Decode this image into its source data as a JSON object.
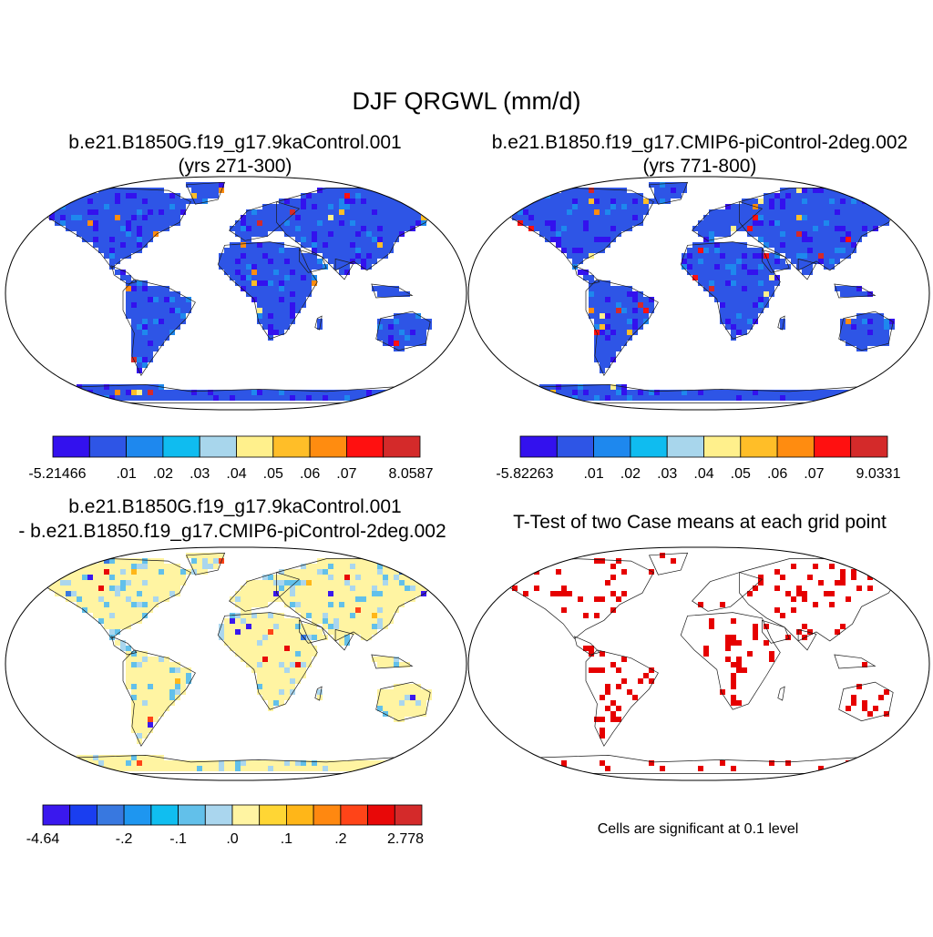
{
  "figure_title": "DJF QRGWL (mm/d)",
  "colors": {
    "ocean": "#ffffff",
    "outline": "#000000",
    "land_outline": "#1a1a1a",
    "signif": "#e60000"
  },
  "chart_data": [
    {
      "type": "heatmap",
      "panel": "case1",
      "title_lines": [
        "b.e21.B1850G.f19_g17.9kaControl.001",
        "(yrs 271-300)"
      ],
      "colorbar": {
        "colors": [
          "#3311ee",
          "#2e55e6",
          "#1e88ee",
          "#0fbcf0",
          "#a8d6ec",
          "#fff08c",
          "#ffbe28",
          "#ff8c10",
          "#ff1010",
          "#d42a2a"
        ],
        "tick_labels": [
          "-5.21466",
          ".01",
          ".02",
          ".03",
          ".04",
          ".05",
          ".06",
          ".07",
          "8.0587"
        ]
      },
      "background_class": 1,
      "texture_classes": [
        0,
        2
      ],
      "hotspot_classes": [
        5,
        6,
        7,
        8,
        9
      ]
    },
    {
      "type": "heatmap",
      "panel": "case2",
      "title_lines": [
        "b.e21.B1850.f19_g17.CMIP6-piControl-2deg.002",
        "(yrs 771-800)"
      ],
      "colorbar": {
        "colors": [
          "#3311ee",
          "#2e55e6",
          "#1e88ee",
          "#0fbcf0",
          "#a8d6ec",
          "#fff08c",
          "#ffbe28",
          "#ff8c10",
          "#ff1010",
          "#d42a2a"
        ],
        "tick_labels": [
          "-5.82263",
          ".01",
          ".02",
          ".03",
          ".04",
          ".05",
          ".06",
          ".07",
          "9.0331"
        ]
      },
      "background_class": 1,
      "texture_classes": [
        0,
        2
      ],
      "hotspot_classes": [
        5,
        6,
        7,
        8,
        9
      ]
    },
    {
      "type": "heatmap",
      "panel": "difference",
      "title_lines": [
        "b.e21.B1850G.f19_g17.9kaControl.001",
        "- b.e21.B1850.f19_g17.CMIP6-piControl-2deg.002"
      ],
      "colorbar": {
        "colors": [
          "#3a18ee",
          "#1a3ef0",
          "#3878e0",
          "#1e96f0",
          "#10bef0",
          "#62c0ea",
          "#aad6ee",
          "#fff4a2",
          "#ffd634",
          "#ffb618",
          "#ff8810",
          "#ff4418",
          "#e80808",
          "#d42a2a"
        ],
        "tick_labels": [
          "-4.64",
          "-.2",
          "-.1",
          ".0",
          ".1",
          ".2",
          "2.778"
        ]
      },
      "background_class": 7,
      "texture_classes": [
        6,
        5
      ],
      "hotspot_classes": [
        0,
        2,
        9,
        11,
        12
      ]
    },
    {
      "type": "heatmap",
      "panel": "ttest",
      "title_lines": [
        "T-Test of two Case means at each grid point"
      ],
      "note": "Cells are significant at 0.1 level",
      "significant_color": "#e60000"
    }
  ]
}
